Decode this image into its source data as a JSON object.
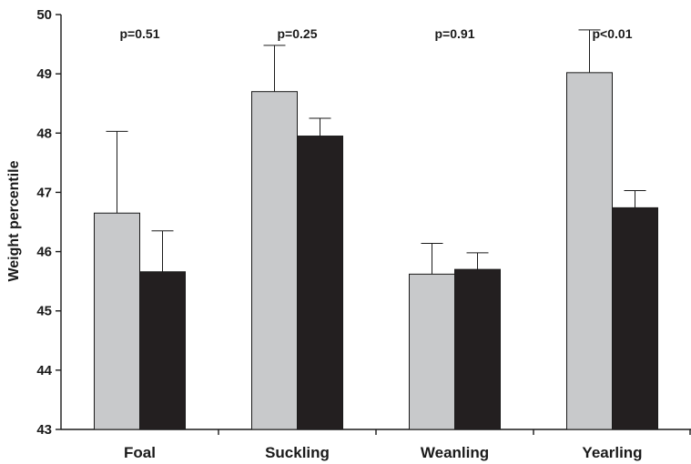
{
  "chart_data": {
    "type": "bar",
    "title": "",
    "xlabel": "",
    "ylabel": "Weight percentile",
    "ylim": [
      43,
      50
    ],
    "yticks": [
      43,
      44,
      45,
      46,
      47,
      48,
      49,
      50
    ],
    "categories": [
      "Foal",
      "Suckling",
      "Weanling",
      "Yearling"
    ],
    "series": [
      {
        "color": "#c8c9cb",
        "values": [
          46.65,
          48.7,
          45.62,
          49.02
        ],
        "errors": [
          1.38,
          0.78,
          0.52,
          0.72
        ]
      },
      {
        "color": "#231f20",
        "values": [
          45.66,
          47.95,
          45.7,
          46.74
        ],
        "errors": [
          0.69,
          0.3,
          0.28,
          0.29
        ]
      }
    ],
    "annotations": [
      "p=0.51",
      "p=0.25",
      "p=0.91",
      "p<0.01"
    ],
    "grid": false,
    "legend": "none"
  }
}
